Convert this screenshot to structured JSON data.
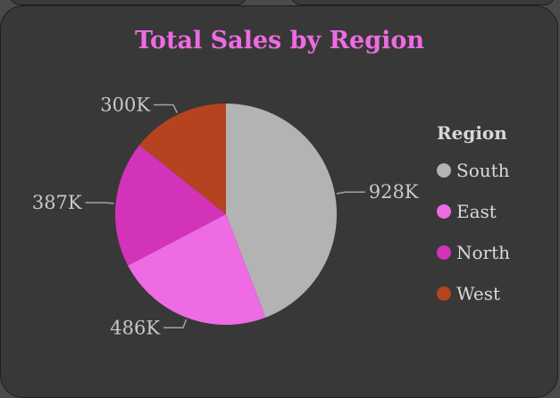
{
  "chart_data": {
    "type": "pie",
    "title": "Total Sales by Region",
    "legend_title": "Region",
    "legend_position": "right",
    "categories": [
      "South",
      "East",
      "North",
      "West"
    ],
    "values": [
      928,
      486,
      387,
      300
    ],
    "labels": [
      "928K",
      "486K",
      "387K",
      "300K"
    ],
    "colors": [
      "#b3b3b3",
      "#ee6be3",
      "#d233b8",
      "#b5431f"
    ]
  },
  "colors": {
    "title": "#ee6be3",
    "card_background": "#383838",
    "text": "#d8d8d8"
  }
}
